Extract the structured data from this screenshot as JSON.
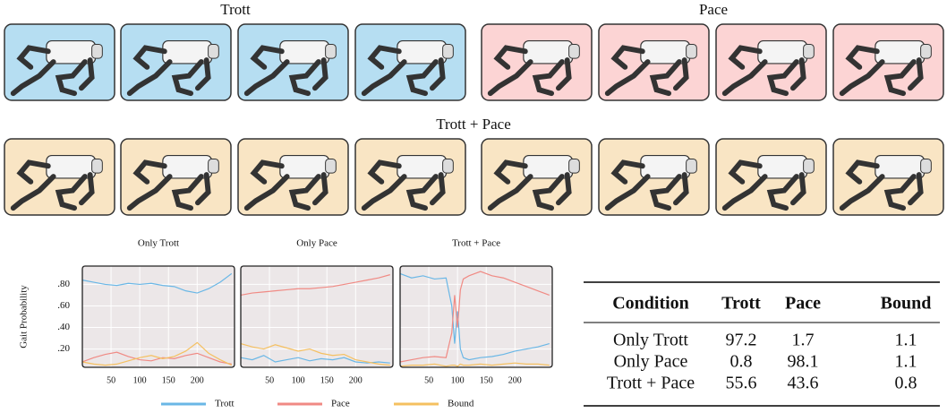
{
  "figure": {
    "titles": [
      "Trott",
      "Pace",
      "Trott + Pace"
    ]
  },
  "chart_data": [
    {
      "type": "line",
      "title": "Only Trott",
      "y_label": "Gait Probability",
      "x": [
        0,
        20,
        40,
        60,
        80,
        100,
        120,
        140,
        160,
        180,
        200,
        220,
        240,
        260
      ],
      "series": [
        {
          "name": "Trott",
          "color": "#6ab7e6",
          "values": [
            0.84,
            0.82,
            0.8,
            0.79,
            0.81,
            0.8,
            0.81,
            0.79,
            0.78,
            0.74,
            0.72,
            0.76,
            0.82,
            0.9
          ]
        },
        {
          "name": "Pace",
          "color": "#f08a84",
          "values": [
            0.08,
            0.12,
            0.15,
            0.17,
            0.13,
            0.1,
            0.09,
            0.12,
            0.11,
            0.14,
            0.16,
            0.12,
            0.08,
            0.06
          ]
        },
        {
          "name": "Bound",
          "color": "#f5c060",
          "values": [
            0.08,
            0.06,
            0.05,
            0.06,
            0.09,
            0.12,
            0.14,
            0.11,
            0.13,
            0.18,
            0.26,
            0.16,
            0.1,
            0.05
          ]
        }
      ],
      "xlim": [
        0,
        265
      ],
      "ylim": [
        0.03,
        0.97
      ],
      "xticks": [
        50,
        100,
        150,
        200
      ],
      "yticks": [
        {
          "value": 0.2,
          "label": ".20"
        },
        {
          "value": 0.4,
          "label": ".40"
        },
        {
          "value": 0.6,
          "label": ".60"
        },
        {
          "value": 0.8,
          "label": ".80"
        }
      ],
      "grid": true
    },
    {
      "type": "line",
      "title": "Only Pace",
      "x": [
        0,
        20,
        40,
        60,
        80,
        100,
        120,
        140,
        160,
        180,
        200,
        220,
        240,
        260
      ],
      "series": [
        {
          "name": "Trott",
          "color": "#6ab7e6",
          "values": [
            0.12,
            0.1,
            0.14,
            0.08,
            0.1,
            0.12,
            0.09,
            0.11,
            0.1,
            0.12,
            0.08,
            0.07,
            0.08,
            0.07
          ]
        },
        {
          "name": "Pace",
          "color": "#f08a84",
          "values": [
            0.7,
            0.72,
            0.73,
            0.74,
            0.75,
            0.76,
            0.76,
            0.77,
            0.78,
            0.8,
            0.82,
            0.84,
            0.86,
            0.89
          ]
        },
        {
          "name": "Bound",
          "color": "#f5c060",
          "values": [
            0.25,
            0.22,
            0.2,
            0.24,
            0.21,
            0.18,
            0.2,
            0.16,
            0.14,
            0.15,
            0.1,
            0.08,
            0.06,
            0.05
          ]
        }
      ],
      "xlim": [
        0,
        265
      ],
      "ylim": [
        0.03,
        0.97
      ],
      "xticks": [
        50,
        100,
        150,
        200
      ],
      "grid": true
    },
    {
      "type": "line",
      "title": "Trott + Pace",
      "x": [
        0,
        20,
        40,
        60,
        80,
        90,
        95,
        100,
        105,
        110,
        120,
        140,
        160,
        180,
        200,
        220,
        240,
        260
      ],
      "series": [
        {
          "name": "Trott",
          "color": "#6ab7e6",
          "values": [
            0.9,
            0.86,
            0.88,
            0.85,
            0.86,
            0.6,
            0.25,
            0.55,
            0.2,
            0.12,
            0.1,
            0.12,
            0.13,
            0.15,
            0.18,
            0.2,
            0.22,
            0.25
          ]
        },
        {
          "name": "Pace",
          "color": "#f08a84",
          "values": [
            0.08,
            0.1,
            0.12,
            0.13,
            0.12,
            0.35,
            0.7,
            0.4,
            0.75,
            0.85,
            0.88,
            0.92,
            0.88,
            0.86,
            0.82,
            0.78,
            0.74,
            0.7
          ]
        },
        {
          "name": "Bound",
          "color": "#f5c060",
          "values": [
            0.04,
            0.05,
            0.05,
            0.06,
            0.04,
            0.05,
            0.05,
            0.04,
            0.06,
            0.05,
            0.05,
            0.06,
            0.05,
            0.06,
            0.07,
            0.06,
            0.06,
            0.05
          ]
        }
      ],
      "xlim": [
        0,
        265
      ],
      "ylim": [
        0.03,
        0.97
      ],
      "xticks": [
        50,
        100,
        150,
        200
      ],
      "grid": true
    }
  ],
  "table": {
    "header": [
      "Condition",
      "Trott",
      "Pace",
      "Bound"
    ],
    "rows": [
      [
        "Only Trott",
        97.2,
        1.7,
        1.1
      ],
      [
        "Only Pace",
        0.8,
        98.1,
        1.1
      ],
      [
        "Trott + Pace",
        55.6,
        43.6,
        0.8
      ]
    ]
  }
}
